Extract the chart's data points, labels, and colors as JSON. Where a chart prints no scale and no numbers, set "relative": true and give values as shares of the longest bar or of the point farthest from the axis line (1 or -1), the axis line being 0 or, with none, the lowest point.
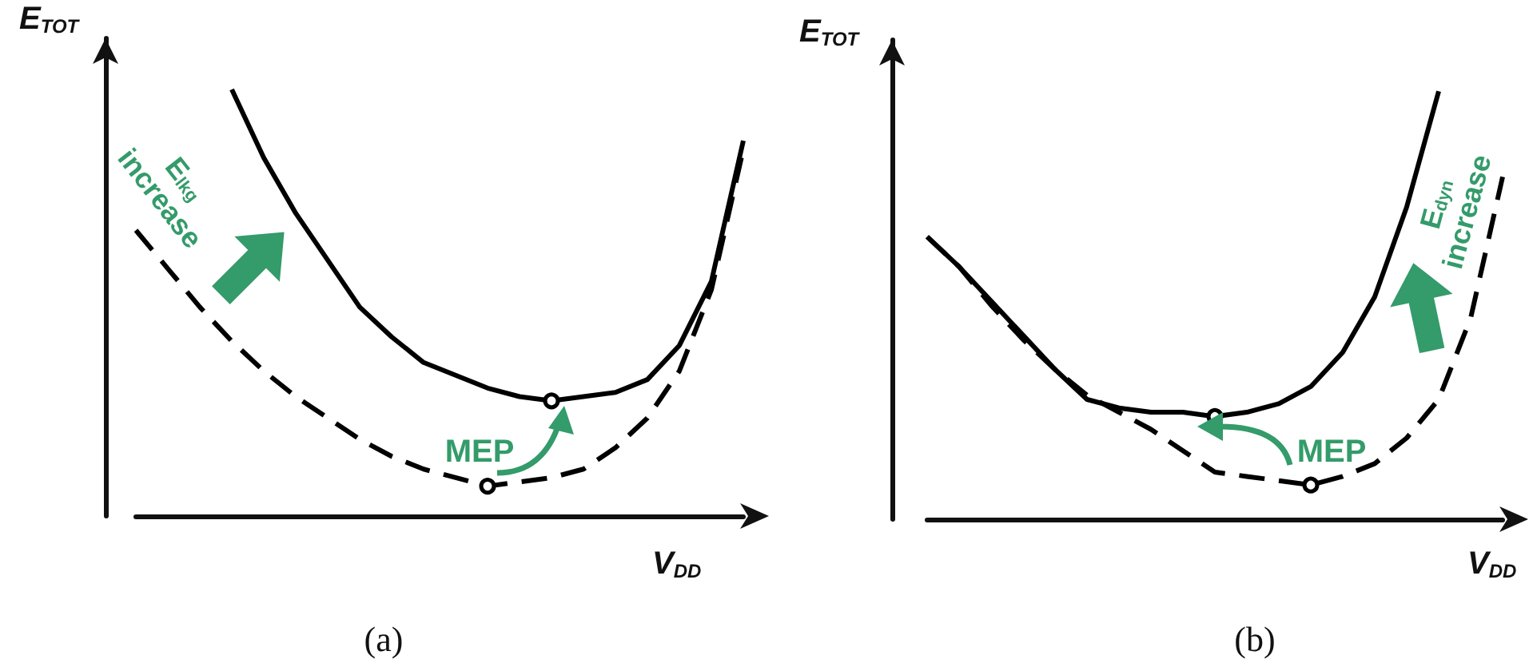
{
  "chart_data": [
    {
      "type": "line",
      "relative": true,
      "xlabel": "V$_{DD}$",
      "ylabel": "E$_{TOT}$",
      "annotations": [
        "E$_{lkg}$ increase",
        "MEP",
        "(a)"
      ],
      "grid": false,
      "categories": [
        null,
        null,
        null,
        null,
        null,
        null,
        null,
        null,
        null,
        null,
        null,
        null,
        null,
        null,
        null,
        null,
        null,
        null,
        null,
        null
      ],
      "series": [
        {
          "color": "#000000",
          "line_style": "solid",
          "values": [
            null,
            null,
            null,
            1,
            0.84,
            0.71,
            0.6,
            0.49,
            0.42,
            0.36,
            0.33,
            0.3,
            0.28,
            0.27,
            0.28,
            0.29,
            0.32,
            0.4,
            0.55,
            0.88
          ]
        },
        {
          "color": "#000000",
          "line_style": "dashed",
          "values": [
            0.67,
            0.58,
            0.49,
            0.41,
            0.34,
            0.28,
            0.23,
            0.18,
            0.14,
            0.11,
            0.09,
            0.07,
            0.08,
            0.09,
            0.11,
            0.16,
            0.23,
            0.34,
            0.53,
            0.86
          ]
        }
      ]
    },
    {
      "type": "line",
      "relative": true,
      "xlabel": "V$_{DD}$",
      "ylabel": "E$_{TOT}$",
      "annotations": [
        "E$_{dyn}$ increase",
        "MEP",
        "(b)"
      ],
      "grid": false,
      "categories": [
        null,
        null,
        null,
        null,
        null,
        null,
        null,
        null,
        null,
        null,
        null,
        null,
        null,
        null,
        null,
        null,
        null,
        null,
        null
      ],
      "series": [
        {
          "color": "#000000",
          "line_style": "solid",
          "values": [
            0.66,
            0.59,
            0.51,
            0.43,
            0.35,
            0.28,
            0.26,
            0.25,
            0.25,
            0.24,
            0.25,
            0.27,
            0.31,
            0.39,
            0.52,
            0.73,
            1,
            null,
            null
          ]
        },
        {
          "color": "#000000",
          "line_style": "dashed",
          "values": [
            0.66,
            0.59,
            0.5,
            0.42,
            0.35,
            0.29,
            0.25,
            0.21,
            0.16,
            0.11,
            0.1,
            0.09,
            0.08,
            0.1,
            0.13,
            0.19,
            0.28,
            0.47,
            0.8
          ]
        }
      ]
    }
  ]
}
